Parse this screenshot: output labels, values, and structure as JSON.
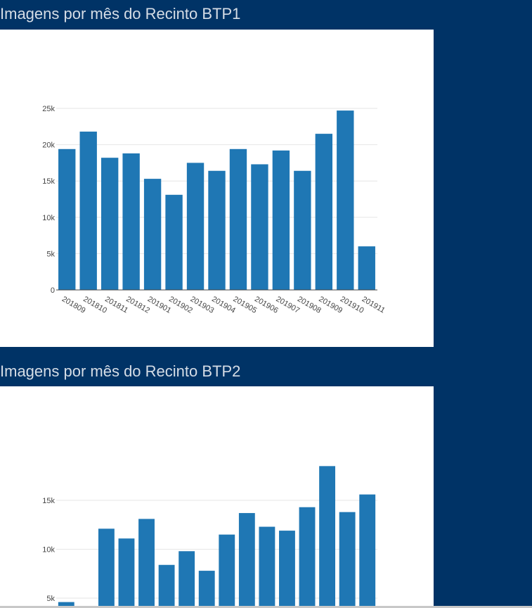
{
  "sections": [
    {
      "title": "Imagens por mês do Recinto BTP1"
    },
    {
      "title": "Imagens por mês do Recinto BTP2"
    }
  ],
  "colors": {
    "background": "#003366",
    "bar": "#1f77b4",
    "grid": "#e6e6e6"
  },
  "chart_data": [
    {
      "type": "bar",
      "title": "Imagens por mês do Recinto BTP1",
      "categories": [
        "201809",
        "201810",
        "201811",
        "201812",
        "201901",
        "201902",
        "201903",
        "201904",
        "201905",
        "201906",
        "201907",
        "201908",
        "201909",
        "201910",
        "201911"
      ],
      "values": [
        19400,
        21800,
        18200,
        18800,
        15300,
        13100,
        17500,
        16400,
        19400,
        17300,
        19200,
        16400,
        21500,
        24700,
        6000
      ],
      "yticks": [
        0,
        5000,
        10000,
        15000,
        20000,
        25000
      ],
      "ytick_labels": [
        "0",
        "5k",
        "10k",
        "15k",
        "20k",
        "25k"
      ],
      "ylim": [
        0,
        25000
      ],
      "grid": true,
      "xlabel": "",
      "ylabel": ""
    },
    {
      "type": "bar",
      "title": "Imagens por mês do Recinto BTP2",
      "values": [
        4600,
        0,
        12100,
        11100,
        13100,
        8400,
        9800,
        7800,
        11500,
        13700,
        12300,
        11900,
        14300,
        18500,
        13800,
        15600
      ],
      "yticks": [
        5000,
        10000,
        15000
      ],
      "ytick_labels": [
        "5k",
        "10k",
        "15k"
      ],
      "grid": true,
      "xlabel": "",
      "ylabel": ""
    }
  ]
}
